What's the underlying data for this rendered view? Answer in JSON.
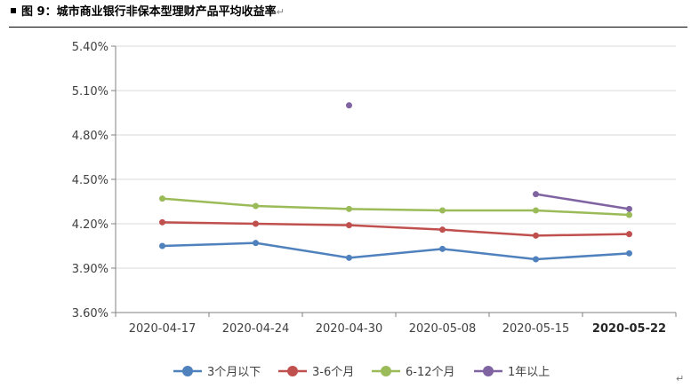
{
  "caption": {
    "title": "图 9：城市商业银行非保本型理财产品平均收益率",
    "return_mark": "↵"
  },
  "chart_data": {
    "type": "line",
    "title": "",
    "xlabel": "",
    "ylabel": "",
    "categories": [
      "2020-04-17",
      "2020-04-24",
      "2020-04-30",
      "2020-05-08",
      "2020-05-15",
      "2020-05-22"
    ],
    "ylim": [
      3.6,
      5.4
    ],
    "yticks": [
      3.6,
      3.9,
      4.2,
      4.5,
      4.8,
      5.1,
      5.4
    ],
    "ytick_labels": [
      "3.60%",
      "3.90%",
      "4.20%",
      "4.50%",
      "4.80%",
      "5.10%",
      "5.40%"
    ],
    "grid": true,
    "legend": "bottom",
    "series": [
      {
        "name": "3个月以下",
        "color": "#4f81bd",
        "values": [
          4.05,
          4.07,
          3.97,
          4.03,
          3.96,
          4.0
        ]
      },
      {
        "name": "3-6个月",
        "color": "#c0504d",
        "values": [
          4.21,
          4.2,
          4.19,
          4.16,
          4.12,
          4.13
        ]
      },
      {
        "name": "6-12个月",
        "color": "#9bbb59",
        "values": [
          4.37,
          4.32,
          4.3,
          4.29,
          4.29,
          4.26
        ]
      },
      {
        "name": "1年以上",
        "color": "#8064a2",
        "values": [
          null,
          null,
          5.0,
          null,
          4.4,
          4.3
        ]
      }
    ]
  },
  "footer": {
    "end_mark": "↵"
  }
}
